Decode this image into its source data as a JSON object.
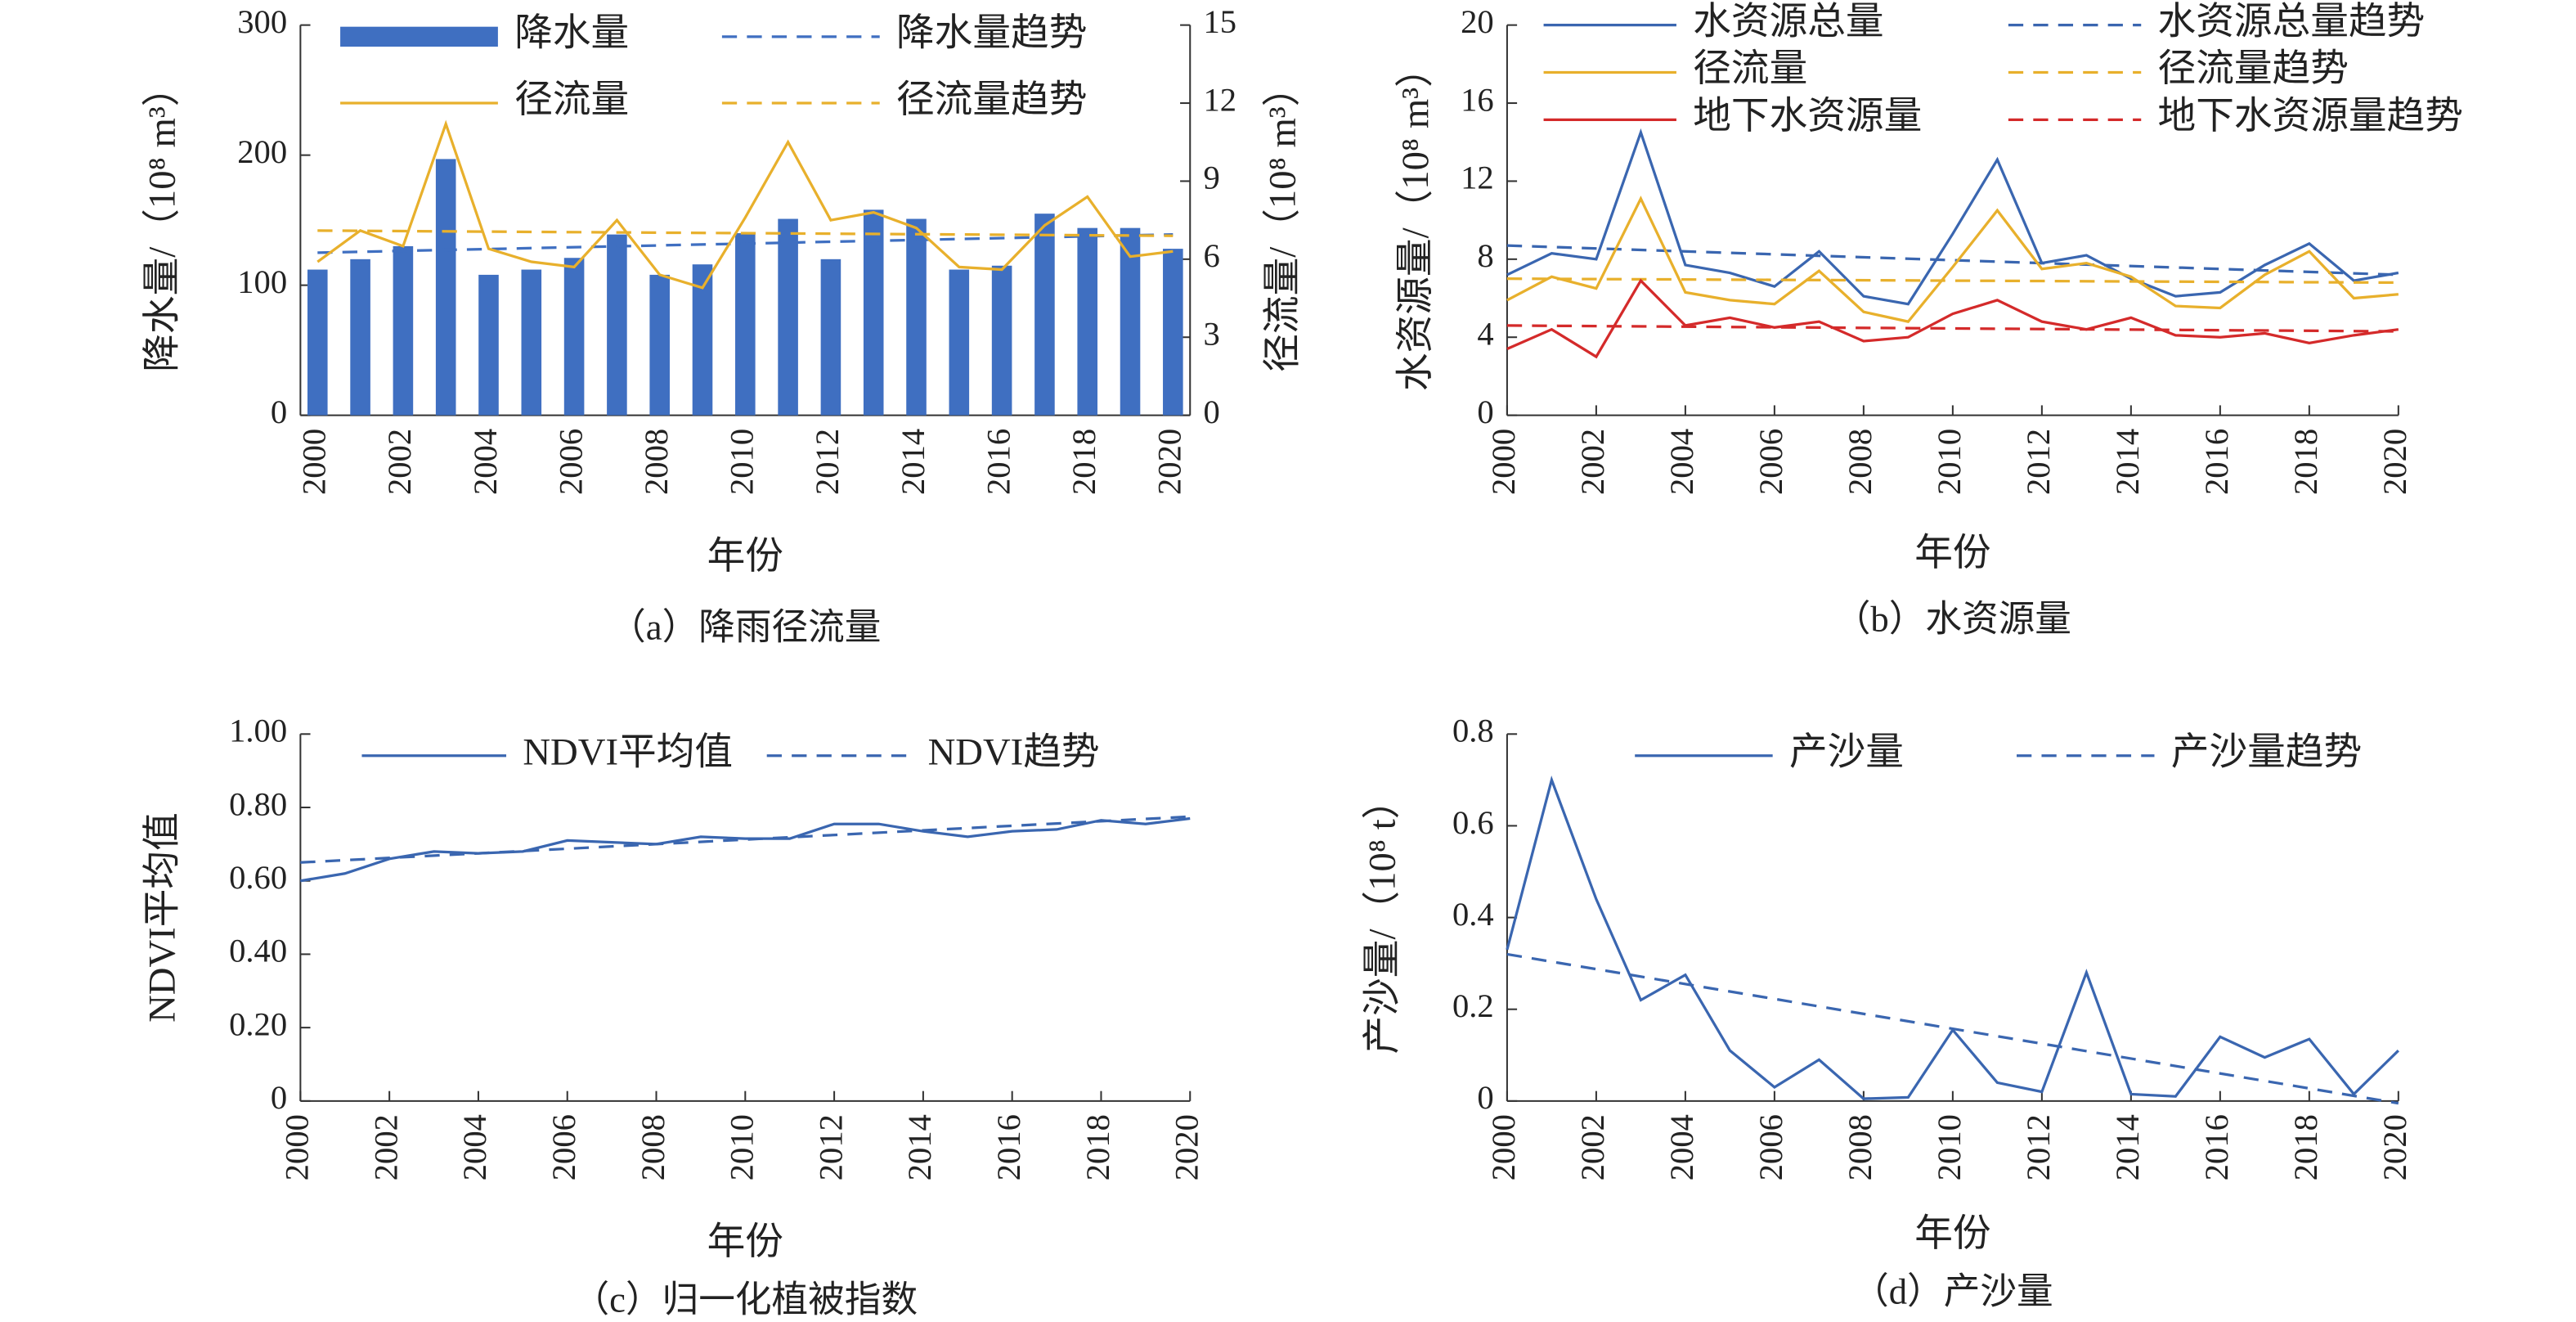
{
  "chart_data": [
    {
      "type": "bar",
      "caption": "（a）降雨径流量",
      "xlabel": "年份",
      "ylabel": "降水量/（10⁸ m³）",
      "y2label": "径流量/（10⁸ m³）",
      "x": [
        2000,
        2001,
        2002,
        2003,
        2004,
        2005,
        2006,
        2007,
        2008,
        2009,
        2010,
        2011,
        2012,
        2013,
        2014,
        2015,
        2016,
        2017,
        2018,
        2019,
        2020
      ],
      "xlim": [
        1999.6,
        2020.4
      ],
      "xticks": [
        2000,
        2002,
        2004,
        2006,
        2008,
        2010,
        2012,
        2014,
        2016,
        2018,
        2020
      ],
      "ylim": [
        0,
        300
      ],
      "yticks": [
        0,
        100,
        200,
        300
      ],
      "y2lim": [
        0,
        15
      ],
      "y2ticks": [
        0,
        3,
        6,
        9,
        12,
        15
      ],
      "series": [
        {
          "name": "降水量",
          "kind": "bar",
          "color": "#3f6fc1",
          "values": [
            112,
            120,
            130,
            197,
            108,
            112,
            121,
            139,
            108,
            116,
            140,
            151,
            120,
            158,
            151,
            112,
            115,
            155,
            144,
            144,
            128
          ]
        },
        {
          "name": "降水量趋势",
          "kind": "line",
          "dash": true,
          "color": "#3f6fc1",
          "x": [
            2000,
            2020
          ],
          "values": [
            125,
            139
          ]
        },
        {
          "name": "径流量",
          "kind": "line",
          "axis": "y2",
          "color": "#e8b02c",
          "values": [
            5.9,
            7.1,
            6.5,
            11.2,
            6.4,
            5.9,
            5.7,
            7.5,
            5.4,
            4.9,
            7.6,
            10.5,
            7.5,
            7.8,
            7.2,
            5.7,
            5.6,
            7.3,
            8.4,
            6.1,
            6.3
          ]
        },
        {
          "name": "径流量趋势",
          "kind": "line",
          "axis": "y2",
          "dash": true,
          "color": "#e8b02c",
          "x": [
            2000,
            2020
          ],
          "values": [
            7.1,
            6.9
          ]
        }
      ]
    },
    {
      "type": "line",
      "caption": "（b）水资源量",
      "xlabel": "年份",
      "ylabel": "水资源量/（10⁸ m³）",
      "x": [
        2000,
        2001,
        2002,
        2003,
        2004,
        2005,
        2006,
        2007,
        2008,
        2009,
        2010,
        2011,
        2012,
        2013,
        2014,
        2015,
        2016,
        2017,
        2018,
        2019,
        2020
      ],
      "xlim": [
        2000,
        2020
      ],
      "xticks": [
        2000,
        2002,
        2004,
        2006,
        2008,
        2010,
        2012,
        2014,
        2016,
        2018,
        2020
      ],
      "ylim": [
        0,
        20
      ],
      "yticks": [
        0,
        4,
        8,
        12,
        16,
        20
      ],
      "series": [
        {
          "name": "水资源总量",
          "kind": "line",
          "color": "#3a66b0",
          "values": [
            7.2,
            8.3,
            8.0,
            14.5,
            7.7,
            7.3,
            6.6,
            8.4,
            6.1,
            5.7,
            9.3,
            13.1,
            7.8,
            8.2,
            7.0,
            6.1,
            6.3,
            7.7,
            8.8,
            6.9,
            7.3
          ]
        },
        {
          "name": "水资源总量趋势",
          "kind": "line",
          "dash": true,
          "color": "#3a66b0",
          "x": [
            2000,
            2020
          ],
          "values": [
            8.7,
            7.2
          ]
        },
        {
          "name": "径流量",
          "kind": "line",
          "color": "#e8b02c",
          "values": [
            5.9,
            7.1,
            6.5,
            11.1,
            6.3,
            5.9,
            5.7,
            7.4,
            5.3,
            4.8,
            7.6,
            10.5,
            7.5,
            7.8,
            7.1,
            5.6,
            5.5,
            7.2,
            8.4,
            6.0,
            6.2
          ]
        },
        {
          "name": "径流量趋势",
          "kind": "line",
          "dash": true,
          "color": "#e8b02c",
          "x": [
            2000,
            2020
          ],
          "values": [
            7.0,
            6.8
          ]
        },
        {
          "name": "地下水资源量",
          "kind": "line",
          "color": "#d42a2a",
          "values": [
            3.4,
            4.4,
            3.0,
            6.9,
            4.6,
            5.0,
            4.5,
            4.8,
            3.8,
            4.0,
            5.2,
            5.9,
            4.8,
            4.4,
            5.0,
            4.1,
            4.0,
            4.2,
            3.7,
            4.1,
            4.4
          ]
        },
        {
          "name": "地下水资源量趋势",
          "kind": "line",
          "dash": true,
          "color": "#d42a2a",
          "x": [
            2000,
            2020
          ],
          "values": [
            4.6,
            4.3
          ]
        }
      ]
    },
    {
      "type": "line",
      "caption": "（c）归一化植被指数",
      "xlabel": "年份",
      "ylabel": "NDVI平均值",
      "x": [
        2000,
        2001,
        2002,
        2003,
        2004,
        2005,
        2006,
        2007,
        2008,
        2009,
        2010,
        2011,
        2012,
        2013,
        2014,
        2015,
        2016,
        2017,
        2018,
        2019,
        2020
      ],
      "xlim": [
        2000,
        2020
      ],
      "xticks": [
        2000,
        2002,
        2004,
        2006,
        2008,
        2010,
        2012,
        2014,
        2016,
        2018,
        2020
      ],
      "ylim": [
        0,
        1
      ],
      "yticks": [
        0,
        {
          "value": 0.2,
          "label": "0.20"
        },
        {
          "value": 0.4,
          "label": "0.40"
        },
        {
          "value": 0.6,
          "label": "0.60"
        },
        {
          "value": 0.8,
          "label": "0.80"
        },
        {
          "value": 1,
          "label": "1.00"
        }
      ],
      "series": [
        {
          "name": "NDVI平均值",
          "kind": "line",
          "color": "#3a66b0",
          "values": [
            0.6,
            0.62,
            0.66,
            0.68,
            0.675,
            0.68,
            0.71,
            0.705,
            0.7,
            0.72,
            0.715,
            0.715,
            0.755,
            0.755,
            0.735,
            0.72,
            0.735,
            0.74,
            0.765,
            0.755,
            0.77
          ]
        },
        {
          "name": "NDVI趋势",
          "kind": "line",
          "dash": true,
          "color": "#3a66b0",
          "x": [
            2000,
            2020
          ],
          "values": [
            0.65,
            0.775
          ]
        }
      ]
    },
    {
      "type": "line",
      "caption": "（d）产沙量",
      "xlabel": "年份",
      "ylabel": "产沙量/（10⁸ t）",
      "x": [
        2000,
        2001,
        2002,
        2003,
        2004,
        2005,
        2006,
        2007,
        2008,
        2009,
        2010,
        2011,
        2012,
        2013,
        2014,
        2015,
        2016,
        2017,
        2018,
        2019,
        2020
      ],
      "xlim": [
        2000,
        2020
      ],
      "xticks": [
        2000,
        2002,
        2004,
        2006,
        2008,
        2010,
        2012,
        2014,
        2016,
        2018,
        2020
      ],
      "ylim": [
        0,
        0.8
      ],
      "yticks": [
        0,
        0.2,
        0.4,
        0.6,
        0.8
      ],
      "series": [
        {
          "name": "产沙量",
          "kind": "line",
          "color": "#3a66b0",
          "values": [
            0.33,
            0.7,
            0.44,
            0.22,
            0.275,
            0.11,
            0.03,
            0.09,
            0.005,
            0.008,
            0.155,
            0.04,
            0.02,
            0.28,
            0.015,
            0.01,
            0.14,
            0.095,
            0.135,
            0.015,
            0.11
          ]
        },
        {
          "name": "产沙量趋势",
          "kind": "line",
          "dash": true,
          "color": "#3a66b0",
          "x": [
            2000,
            2020
          ],
          "values": [
            0.32,
            -0.005
          ]
        }
      ]
    }
  ]
}
